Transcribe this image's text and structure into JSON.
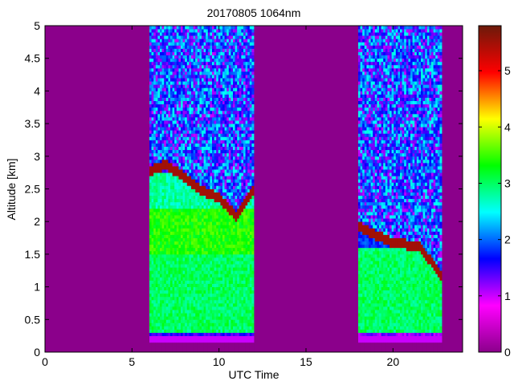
{
  "chart_data": {
    "type": "heatmap",
    "title": "20170805 1064nm",
    "xlabel": "UTC Time",
    "ylabel": "Altitude [km]",
    "xlim": [
      0,
      24
    ],
    "ylim": [
      0,
      5
    ],
    "x_ticks": [
      0,
      5,
      10,
      15,
      20
    ],
    "x_tick_labels": [
      "0",
      "5",
      "10",
      "15",
      "20"
    ],
    "y_ticks": [
      0,
      0.5,
      1,
      1.5,
      2,
      2.5,
      3,
      3.5,
      4,
      4.5,
      5
    ],
    "y_tick_labels": [
      "0",
      "0.5",
      "1",
      "1.5",
      "2",
      "2.5",
      "3",
      "3.5",
      "4",
      "4.5",
      "5"
    ],
    "colorbar": {
      "range": [
        0,
        5.8
      ],
      "ticks": [
        0,
        1,
        2,
        3,
        4,
        5
      ],
      "tick_labels": [
        "0",
        "1",
        "2",
        "3",
        "4",
        "5"
      ],
      "colors": [
        "#8b008b",
        "#ff00ff",
        "#0000ff",
        "#00ffff",
        "#00ff00",
        "#ffff00",
        "#ff0000",
        "#6b1a0a"
      ]
    },
    "background_value": 0,
    "measurement_periods": [
      {
        "x_start": 6.0,
        "x_end": 12.0,
        "ground_return_altitude": 0.2,
        "profile": [
          {
            "alt_min": 0.3,
            "alt_max": 1.5,
            "value": 3.0
          },
          {
            "alt_min": 1.5,
            "alt_max": 2.2,
            "value": 3.4
          },
          {
            "alt_min": 2.2,
            "alt_max": 2.75,
            "value": 2.8
          },
          {
            "alt_min": 2.75,
            "alt_max": 5.0,
            "value": 1.5
          }
        ],
        "aerosol_top_km": [
          {
            "x": 6.0,
            "y": 2.7
          },
          {
            "x": 7.0,
            "y": 2.8
          },
          {
            "x": 8.0,
            "y": 2.6
          },
          {
            "x": 9.0,
            "y": 2.4
          },
          {
            "x": 10.0,
            "y": 2.3
          },
          {
            "x": 11.0,
            "y": 2.0
          },
          {
            "x": 12.0,
            "y": 2.4
          }
        ],
        "peak_layer_value": 5.5
      },
      {
        "x_start": 18.0,
        "x_end": 22.8,
        "ground_return_altitude": 0.2,
        "profile": [
          {
            "alt_min": 0.3,
            "alt_max": 1.6,
            "value": 3.0
          },
          {
            "alt_min": 1.6,
            "alt_max": 2.0,
            "value": 1.8
          },
          {
            "alt_min": 2.0,
            "alt_max": 5.0,
            "value": 1.2
          }
        ],
        "aerosol_top_km": [
          {
            "x": 18.0,
            "y": 1.85
          },
          {
            "x": 20.0,
            "y": 1.6
          },
          {
            "x": 21.5,
            "y": 1.55
          },
          {
            "x": 22.8,
            "y": 1.1
          }
        ],
        "peak_layer_value": 5.5
      }
    ]
  }
}
